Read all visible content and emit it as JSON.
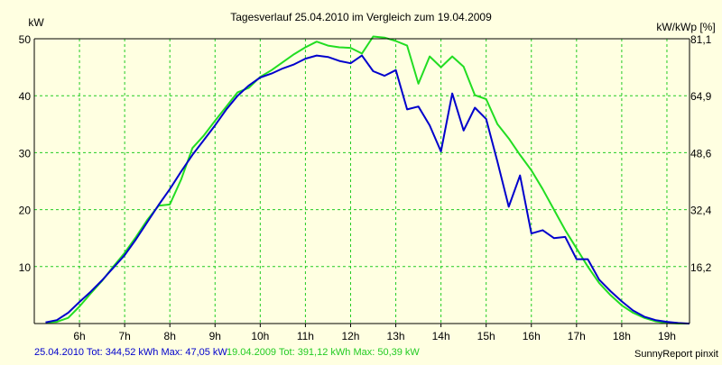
{
  "chart_data": {
    "type": "line",
    "title": "Tagesverlauf 25.04.2010 im Vergleich zum 19.04.2009",
    "ylabel_left": "kW",
    "ylabel_right": "kW/kWp [%]",
    "ylim": [
      0,
      50
    ],
    "y2lim": [
      0,
      81.1
    ],
    "xlim": [
      5.0,
      19.5
    ],
    "x_ticks": [
      "6h",
      "7h",
      "8h",
      "9h",
      "10h",
      "11h",
      "12h",
      "13h",
      "14h",
      "15h",
      "16h",
      "17h",
      "18h",
      "19h"
    ],
    "y_ticks_left": [
      "10",
      "20",
      "30",
      "40",
      "50"
    ],
    "y_ticks_right": [
      "16,2",
      "32,4",
      "48,6",
      "64,9",
      "81,1"
    ],
    "grid": true,
    "series": [
      {
        "name": "25.04.2010",
        "color": "#0000cc",
        "x": [
          5.25,
          5.5,
          5.75,
          6.0,
          6.25,
          6.5,
          6.75,
          7.0,
          7.25,
          7.5,
          7.75,
          8.0,
          8.25,
          8.5,
          8.75,
          9.0,
          9.25,
          9.5,
          9.75,
          10.0,
          10.25,
          10.5,
          10.75,
          11.0,
          11.25,
          11.5,
          11.75,
          12.0,
          12.25,
          12.5,
          12.75,
          13.0,
          13.25,
          13.5,
          13.75,
          14.0,
          14.25,
          14.5,
          14.75,
          15.0,
          15.25,
          15.5,
          15.75,
          16.0,
          16.25,
          16.5,
          16.75,
          17.0,
          17.25,
          17.5,
          17.75,
          18.0,
          18.25,
          18.5,
          18.75,
          19.0,
          19.25,
          19.5
        ],
        "y": [
          0.2,
          0.6,
          1.9,
          3.8,
          5.6,
          7.6,
          9.8,
          12.0,
          14.8,
          17.8,
          20.8,
          23.6,
          26.7,
          29.6,
          32.2,
          34.8,
          37.6,
          40.0,
          41.8,
          43.2,
          43.9,
          44.8,
          45.5,
          46.5,
          47.05,
          46.8,
          46.1,
          45.7,
          47.05,
          44.3,
          43.5,
          44.5,
          37.6,
          38.1,
          34.8,
          30.2,
          40.4,
          33.9,
          37.9,
          35.9,
          28.4,
          20.5,
          26.0,
          15.8,
          16.4,
          15.0,
          15.2,
          11.3,
          11.3,
          7.7,
          5.7,
          3.9,
          2.3,
          1.2,
          0.6,
          0.3,
          0.1,
          0.0
        ]
      },
      {
        "name": "19.04.2009",
        "color": "#22dd22",
        "x": [
          5.25,
          5.5,
          5.75,
          6.0,
          6.25,
          6.5,
          6.75,
          7.0,
          7.25,
          7.5,
          7.75,
          8.0,
          8.25,
          8.5,
          8.75,
          9.0,
          9.25,
          9.5,
          9.75,
          10.0,
          10.25,
          10.5,
          10.75,
          11.0,
          11.25,
          11.5,
          11.75,
          12.0,
          12.25,
          12.5,
          12.75,
          13.0,
          13.25,
          13.5,
          13.75,
          14.0,
          14.25,
          14.5,
          14.75,
          15.0,
          15.25,
          15.5,
          15.75,
          16.0,
          16.25,
          16.5,
          16.75,
          17.0,
          17.25,
          17.5,
          17.75,
          18.0,
          18.25,
          18.5,
          18.75,
          19.0,
          19.25,
          19.5
        ],
        "y": [
          0.2,
          0.3,
          1.0,
          3.0,
          5.3,
          7.5,
          10.0,
          12.4,
          15.2,
          18.2,
          20.7,
          20.9,
          25.3,
          30.8,
          33.0,
          35.6,
          38.1,
          40.6,
          41.4,
          43.3,
          44.5,
          45.9,
          47.3,
          48.5,
          49.5,
          48.8,
          48.5,
          48.4,
          47.4,
          50.39,
          50.2,
          49.6,
          48.8,
          42.1,
          46.9,
          45.0,
          46.9,
          45.1,
          40.1,
          39.4,
          35.0,
          32.5,
          29.6,
          26.9,
          23.6,
          20.0,
          16.4,
          13.2,
          10.0,
          7.1,
          5.0,
          3.2,
          1.9,
          1.0,
          0.4,
          0.1,
          0.0,
          0.0
        ]
      }
    ]
  },
  "footer": {
    "series1_summary": "25.04.2010 Tot: 344,52 kWh Max: 47,05 kW",
    "series2_summary": "19.04.2009 Tot: 391,12 kWh Max: 50,39 kW",
    "credit": "SunnyReport pinxit"
  }
}
